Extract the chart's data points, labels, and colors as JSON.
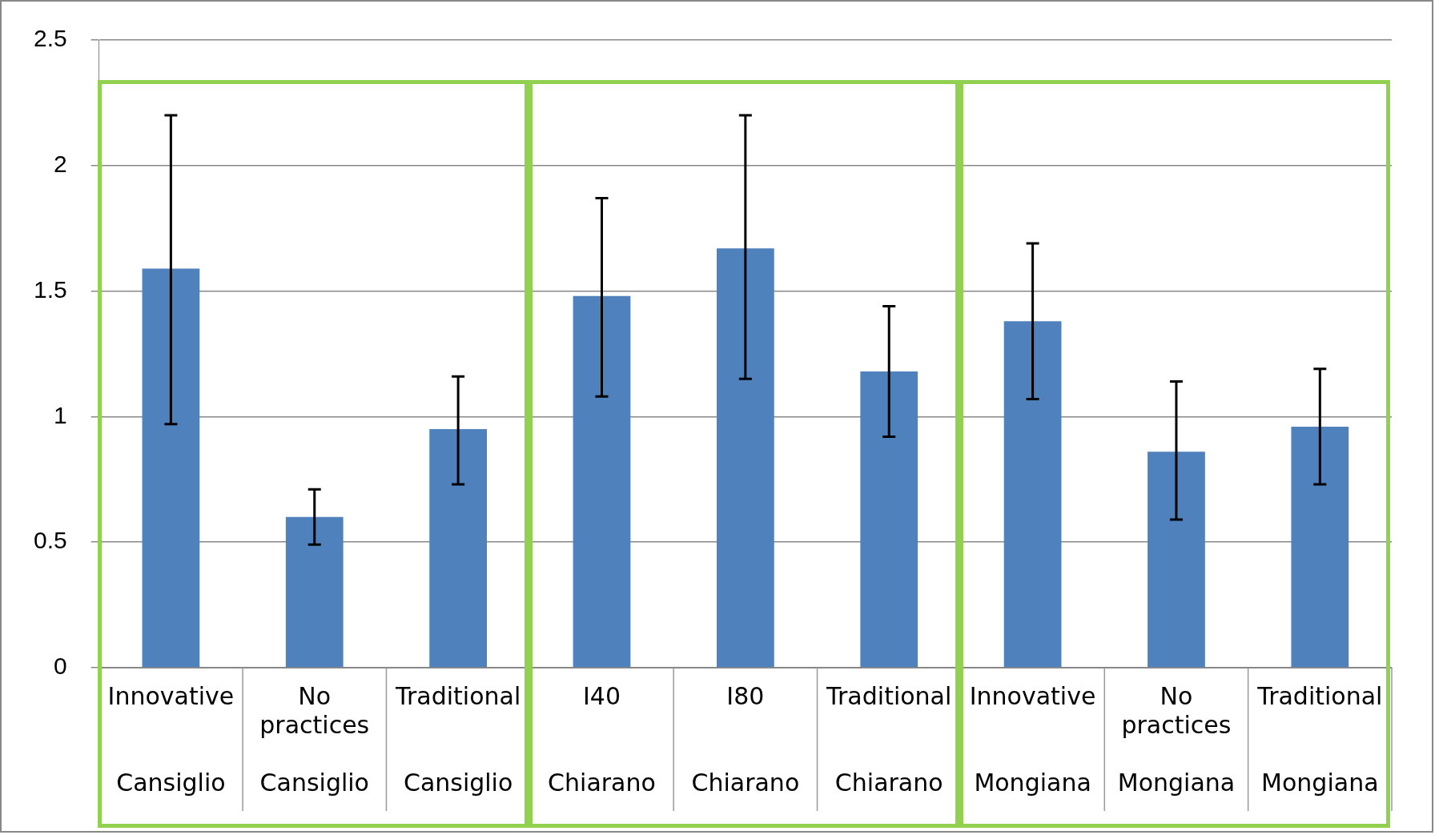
{
  "chart_data": {
    "type": "bar",
    "categories": [
      "Innovative\nCansiglio",
      "No practices\nCansiglio",
      "Traditional\nCansiglio",
      "I40\nChiarano",
      "I80\nChiarano",
      "Traditional\nChiarano",
      "Innovative\nMongiana",
      "No practices\nMongiana",
      "Traditional\nMongiana"
    ],
    "values": [
      1.59,
      0.6,
      0.95,
      1.48,
      1.67,
      1.18,
      1.38,
      0.86,
      0.96
    ],
    "errors": [
      [
        0.97,
        2.2
      ],
      [
        0.49,
        0.71
      ],
      [
        0.73,
        1.16
      ],
      [
        1.08,
        1.87
      ],
      [
        1.15,
        2.2
      ],
      [
        0.92,
        1.44
      ],
      [
        1.07,
        1.69
      ],
      [
        0.59,
        1.14
      ],
      [
        0.73,
        1.19
      ]
    ],
    "color": "#4f81bd",
    "ylim": [
      0,
      2.5
    ],
    "yticks": [
      0,
      0.5,
      1,
      1.5,
      2,
      2.5
    ],
    "grid": "y",
    "legend": false
  }
}
